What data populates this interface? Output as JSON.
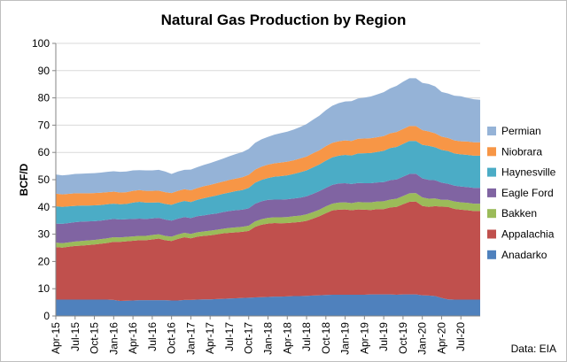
{
  "chart_data": {
    "type": "area",
    "stacked": true,
    "title": "Natural Gas Production by Region",
    "ylabel": "BCF/D",
    "xlabel": "",
    "ylim": [
      0,
      100
    ],
    "yticks": [
      0,
      10,
      20,
      30,
      40,
      50,
      60,
      70,
      80,
      90,
      100
    ],
    "grid": true,
    "legend_position": "right",
    "source": "Data: EIA",
    "x": [
      "Apr-15",
      "May-15",
      "Jun-15",
      "Jul-15",
      "Aug-15",
      "Sep-15",
      "Oct-15",
      "Nov-15",
      "Dec-15",
      "Jan-16",
      "Feb-16",
      "Mar-16",
      "Apr-16",
      "May-16",
      "Jun-16",
      "Jul-16",
      "Aug-16",
      "Sep-16",
      "Oct-16",
      "Nov-16",
      "Dec-16",
      "Jan-17",
      "Feb-17",
      "Mar-17",
      "Apr-17",
      "May-17",
      "Jun-17",
      "Jul-17",
      "Aug-17",
      "Sep-17",
      "Oct-17",
      "Nov-17",
      "Dec-17",
      "Jan-18",
      "Feb-18",
      "Mar-18",
      "Apr-18",
      "May-18",
      "Jun-18",
      "Jul-18",
      "Aug-18",
      "Sep-18",
      "Oct-18",
      "Nov-18",
      "Dec-18",
      "Jan-19",
      "Feb-19",
      "Mar-19",
      "Apr-19",
      "May-19",
      "Jun-19",
      "Jul-19",
      "Aug-19",
      "Sep-19",
      "Oct-19",
      "Nov-19",
      "Dec-19",
      "Jan-20",
      "Feb-20",
      "Mar-20",
      "Apr-20",
      "May-20",
      "Jun-20",
      "Jul-20",
      "Aug-20",
      "Sep-20",
      "Oct-20"
    ],
    "x_tick_labels": [
      "Apr-15",
      "Jul-15",
      "Oct-15",
      "Jan-16",
      "Apr-16",
      "Jul-16",
      "Oct-16",
      "Jan-17",
      "Apr-17",
      "Jul-17",
      "Oct-17",
      "Jan-18",
      "Apr-18",
      "Jul-18",
      "Oct-18",
      "Jan-19",
      "Apr-19",
      "Jul-19",
      "Oct-19",
      "Jan-20",
      "Apr-20",
      "Jul-20"
    ],
    "series": [
      {
        "name": "Anadarko",
        "color": "#4f81bd",
        "values": [
          6.0,
          6.0,
          6.0,
          6.0,
          6.0,
          6.0,
          6.0,
          6.0,
          6.0,
          5.9,
          5.5,
          5.6,
          5.7,
          5.8,
          5.8,
          5.8,
          5.8,
          5.8,
          5.7,
          5.7,
          5.9,
          5.9,
          6.0,
          6.1,
          6.1,
          6.2,
          6.3,
          6.4,
          6.5,
          6.6,
          6.7,
          6.8,
          6.9,
          7.0,
          7.1,
          7.1,
          7.2,
          7.3,
          7.3,
          7.4,
          7.5,
          7.6,
          7.7,
          7.8,
          7.8,
          7.8,
          7.8,
          7.8,
          7.8,
          7.9,
          7.9,
          7.9,
          7.9,
          7.8,
          7.9,
          7.9,
          7.9,
          7.6,
          7.5,
          7.3,
          6.6,
          6.1,
          6.0,
          6.0,
          6.0,
          6.0,
          6.0
        ]
      },
      {
        "name": "Appalachia",
        "color": "#c0504d",
        "values": [
          19.3,
          19.1,
          19.4,
          19.7,
          19.8,
          20.0,
          20.2,
          20.5,
          20.8,
          21.3,
          21.7,
          21.8,
          21.9,
          22.0,
          22.0,
          22.3,
          22.6,
          22.0,
          21.8,
          22.6,
          23.0,
          22.6,
          23.1,
          23.3,
          23.5,
          23.7,
          24.0,
          24.1,
          24.2,
          24.3,
          24.5,
          25.9,
          26.6,
          26.9,
          27.0,
          26.9,
          26.9,
          27.0,
          27.2,
          27.5,
          28.2,
          29.0,
          30.0,
          30.9,
          31.2,
          31.3,
          31.0,
          31.3,
          31.2,
          31.0,
          31.3,
          31.3,
          31.9,
          32.2,
          33.1,
          34.0,
          34.1,
          32.8,
          32.5,
          33.0,
          33.5,
          33.9,
          33.3,
          33.0,
          32.8,
          32.5,
          32.5
        ]
      },
      {
        "name": "Bakken",
        "color": "#9bbb59",
        "values": [
          1.6,
          1.6,
          1.6,
          1.6,
          1.7,
          1.7,
          1.7,
          1.7,
          1.7,
          1.7,
          1.6,
          1.6,
          1.6,
          1.6,
          1.6,
          1.6,
          1.6,
          1.6,
          1.6,
          1.6,
          1.6,
          1.6,
          1.6,
          1.6,
          1.7,
          1.7,
          1.7,
          1.8,
          1.8,
          1.8,
          1.9,
          2.0,
          2.0,
          2.1,
          2.1,
          2.2,
          2.2,
          2.3,
          2.3,
          2.4,
          2.4,
          2.4,
          2.5,
          2.5,
          2.6,
          2.6,
          2.6,
          2.7,
          2.7,
          2.8,
          2.8,
          2.9,
          2.9,
          3.0,
          3.0,
          3.1,
          3.1,
          3.1,
          3.0,
          2.8,
          2.5,
          2.6,
          2.7,
          2.7,
          2.7,
          2.7,
          2.7
        ]
      },
      {
        "name": "Eagle Ford",
        "color": "#8064a2",
        "values": [
          7.0,
          7.1,
          7.1,
          7.1,
          7.1,
          7.0,
          6.9,
          6.8,
          6.8,
          6.7,
          6.6,
          6.5,
          6.4,
          6.3,
          6.2,
          6.1,
          6.0,
          6.0,
          5.9,
          5.8,
          5.8,
          5.8,
          5.9,
          5.9,
          6.0,
          6.0,
          6.1,
          6.2,
          6.3,
          6.3,
          6.4,
          6.5,
          6.6,
          6.6,
          6.5,
          6.5,
          6.5,
          6.5,
          6.6,
          6.6,
          6.7,
          6.8,
          6.8,
          6.9,
          7.0,
          7.0,
          7.0,
          7.0,
          7.0,
          7.0,
          7.0,
          7.0,
          7.1,
          7.1,
          7.1,
          7.1,
          7.1,
          7.0,
          6.9,
          6.7,
          6.3,
          5.9,
          5.8,
          5.8,
          5.8,
          5.8,
          5.8
        ]
      },
      {
        "name": "Haynesville",
        "color": "#4bacc6",
        "values": [
          6.3,
          6.2,
          6.1,
          6.0,
          5.9,
          5.8,
          5.8,
          5.7,
          5.7,
          5.6,
          5.6,
          5.6,
          6.0,
          6.2,
          6.0,
          5.8,
          5.7,
          5.7,
          5.8,
          5.9,
          5.9,
          5.9,
          6.0,
          6.3,
          6.4,
          6.6,
          6.7,
          6.8,
          7.0,
          7.2,
          7.5,
          7.7,
          7.8,
          8.0,
          8.4,
          8.6,
          8.8,
          9.0,
          9.3,
          9.5,
          9.7,
          9.8,
          10.0,
          10.1,
          10.2,
          10.4,
          10.5,
          10.8,
          11.0,
          11.1,
          11.2,
          11.5,
          11.8,
          11.9,
          12.0,
          12.1,
          12.0,
          12.3,
          12.5,
          12.1,
          12.0,
          12.0,
          11.8,
          11.8,
          11.8,
          11.8,
          11.8
        ]
      },
      {
        "name": "Niobrara",
        "color": "#f79646",
        "values": [
          4.7,
          4.6,
          4.6,
          4.6,
          4.5,
          4.5,
          4.5,
          4.5,
          4.4,
          4.4,
          4.3,
          4.3,
          4.3,
          4.3,
          4.3,
          4.3,
          4.3,
          4.3,
          4.3,
          4.3,
          4.3,
          4.3,
          4.3,
          4.4,
          4.4,
          4.5,
          4.5,
          4.6,
          4.6,
          4.7,
          4.8,
          4.8,
          4.9,
          4.9,
          4.9,
          5.0,
          5.0,
          5.0,
          5.1,
          5.1,
          5.2,
          5.2,
          5.3,
          5.3,
          5.3,
          5.3,
          5.3,
          5.4,
          5.4,
          5.4,
          5.4,
          5.4,
          5.4,
          5.5,
          5.5,
          5.5,
          5.5,
          5.4,
          5.3,
          5.1,
          4.9,
          4.8,
          4.8,
          4.8,
          4.9,
          4.9,
          4.9
        ]
      },
      {
        "name": "Permian",
        "color": "#95b3d7",
        "values": [
          7.0,
          7.0,
          7.0,
          7.1,
          7.2,
          7.3,
          7.3,
          7.4,
          7.5,
          7.5,
          7.6,
          7.6,
          7.5,
          7.3,
          7.5,
          7.5,
          7.6,
          7.6,
          7.0,
          7.1,
          7.1,
          7.6,
          7.7,
          7.8,
          8.0,
          8.2,
          8.4,
          8.7,
          9.0,
          9.2,
          9.5,
          9.8,
          10.0,
          10.2,
          10.5,
          10.8,
          11.0,
          11.3,
          11.5,
          11.9,
          12.3,
          12.7,
          13.2,
          13.6,
          14.0,
          14.3,
          14.6,
          14.8,
          15.0,
          15.3,
          15.7,
          16.1,
          16.5,
          16.9,
          17.3,
          17.5,
          17.5,
          17.3,
          17.4,
          17.2,
          16.4,
          16.3,
          16.4,
          16.5,
          16.0,
          15.8,
          15.6
        ]
      }
    ]
  }
}
